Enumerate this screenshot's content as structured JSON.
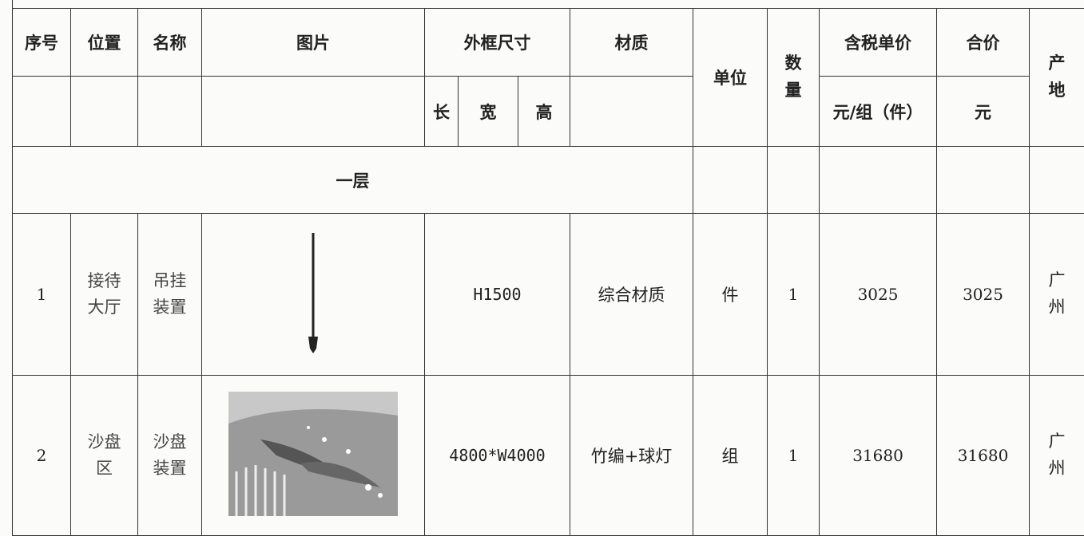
{
  "header_row_1": [
    "序号",
    "位置",
    "名称",
    "图片",
    "外框尺寸",
    "材质",
    "单位",
    "数量",
    "含税单价",
    "合价",
    "产地"
  ],
  "header_row_2": [
    "长",
    "宽",
    "高",
    "元/组（件）",
    "元"
  ],
  "section": "一层",
  "rows": [
    {
      "index": 1,
      "location": "接待大厅",
      "name": "吊挂装置",
      "size": "H1500",
      "material": "综合材质",
      "unit": "件",
      "quantity": 1,
      "unit_price": 3025,
      "total": 3025,
      "origin": "广州"
    },
    {
      "index": 2,
      "location": "沙盘区",
      "name": "沙盘装置",
      "size": "4800*W4000",
      "material": "竹编+球灯",
      "unit": "组",
      "quantity": 1,
      "unit_price": 31680,
      "total": 31680,
      "origin": "广州"
    }
  ]
}
